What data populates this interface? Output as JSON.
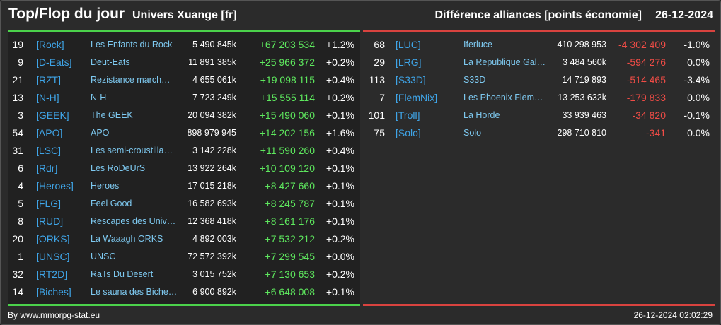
{
  "header": {
    "title": "Top/Flop du jour",
    "universe": "Univers Xuange [fr]",
    "right_title": "Différence alliances [points économie]",
    "date": "26-12-2024"
  },
  "colors": {
    "positive": "#5ee85e",
    "negative": "#f04c46",
    "tag": "#3fa5e8",
    "name": "#7ec9f0"
  },
  "top": [
    {
      "rank": "19",
      "tag": "[Rock]",
      "name": "Les Enfants du Rock",
      "points": "5 490 845k",
      "diff": "+67 203 534",
      "pct": "+1.2%"
    },
    {
      "rank": "9",
      "tag": "[D-Eats]",
      "name": "Deut-Eats",
      "points": "11 891 385k",
      "diff": "+25 966 372",
      "pct": "+0.2%"
    },
    {
      "rank": "21",
      "tag": "[RZT]",
      "name": "Rezistance march…",
      "points": "4 655 061k",
      "diff": "+19 098 115",
      "pct": "+0.4%"
    },
    {
      "rank": "13",
      "tag": "[N-H]",
      "name": "N-H",
      "points": "7 723 249k",
      "diff": "+15 555 114",
      "pct": "+0.2%"
    },
    {
      "rank": "3",
      "tag": "[GEEK]",
      "name": "The GEEK",
      "points": "20 094 382k",
      "diff": "+15 490 060",
      "pct": "+0.1%"
    },
    {
      "rank": "54",
      "tag": "[APO]",
      "name": "APO",
      "points": "898 979 945",
      "diff": "+14 202 156",
      "pct": "+1.6%"
    },
    {
      "rank": "31",
      "tag": "[LSC]",
      "name": "Les semi-croustilla…",
      "points": "3 142 228k",
      "diff": "+11 590 260",
      "pct": "+0.4%"
    },
    {
      "rank": "6",
      "tag": "[Rdr]",
      "name": "Les RoDeUrS",
      "points": "13 922 264k",
      "diff": "+10 109 120",
      "pct": "+0.1%"
    },
    {
      "rank": "4",
      "tag": "[Heroes]",
      "name": "Heroes",
      "points": "17 015 218k",
      "diff": "+8 427 660",
      "pct": "+0.1%"
    },
    {
      "rank": "5",
      "tag": "[FLG]",
      "name": "Feel Good",
      "points": "16 582 693k",
      "diff": "+8 245 787",
      "pct": "+0.1%"
    },
    {
      "rank": "8",
      "tag": "[RUD]",
      "name": "Rescapes des Univ…",
      "points": "12 368 418k",
      "diff": "+8 161 176",
      "pct": "+0.1%"
    },
    {
      "rank": "20",
      "tag": "[ORKS]",
      "name": "La Waaagh ORKS",
      "points": "4 892 003k",
      "diff": "+7 532 212",
      "pct": "+0.2%"
    },
    {
      "rank": "1",
      "tag": "[UNSC]",
      "name": "UNSC",
      "points": "72 572 392k",
      "diff": "+7 299 545",
      "pct": "+0.0%"
    },
    {
      "rank": "32",
      "tag": "[RT2D]",
      "name": "RaTs Du Desert",
      "points": "3 015 752k",
      "diff": "+7 130 653",
      "pct": "+0.2%"
    },
    {
      "rank": "14",
      "tag": "[Biches]",
      "name": "Le sauna des Biche…",
      "points": "6 900 892k",
      "diff": "+6 648 008",
      "pct": "+0.1%"
    }
  ],
  "flop": [
    {
      "rank": "68",
      "tag": "[LUC]",
      "name": "Iferluce",
      "points": "410 298 953",
      "diff": "-4 302 409",
      "pct": "-1.0%"
    },
    {
      "rank": "29",
      "tag": "[LRG]",
      "name": "La Republique Gala…",
      "points": "3 484 560k",
      "diff": "-594 276",
      "pct": "0.0%"
    },
    {
      "rank": "113",
      "tag": "[S33D]",
      "name": "S33D",
      "points": "14 719 893",
      "diff": "-514 465",
      "pct": "-3.4%"
    },
    {
      "rank": "7",
      "tag": "[FlemNix]",
      "name": "Les Phoenix Flem…",
      "points": "13 253 632k",
      "diff": "-179 833",
      "pct": "0.0%"
    },
    {
      "rank": "101",
      "tag": "[Troll]",
      "name": "La Horde",
      "points": "33 939 463",
      "diff": "-34 820",
      "pct": "-0.1%"
    },
    {
      "rank": "75",
      "tag": "[Solo]",
      "name": "Solo",
      "points": "298 710 810",
      "diff": "-341",
      "pct": "0.0%"
    }
  ],
  "footer": {
    "credit": "By www.mmorpg-stat.eu",
    "timestamp": "26-12-2024 02:02:29"
  }
}
